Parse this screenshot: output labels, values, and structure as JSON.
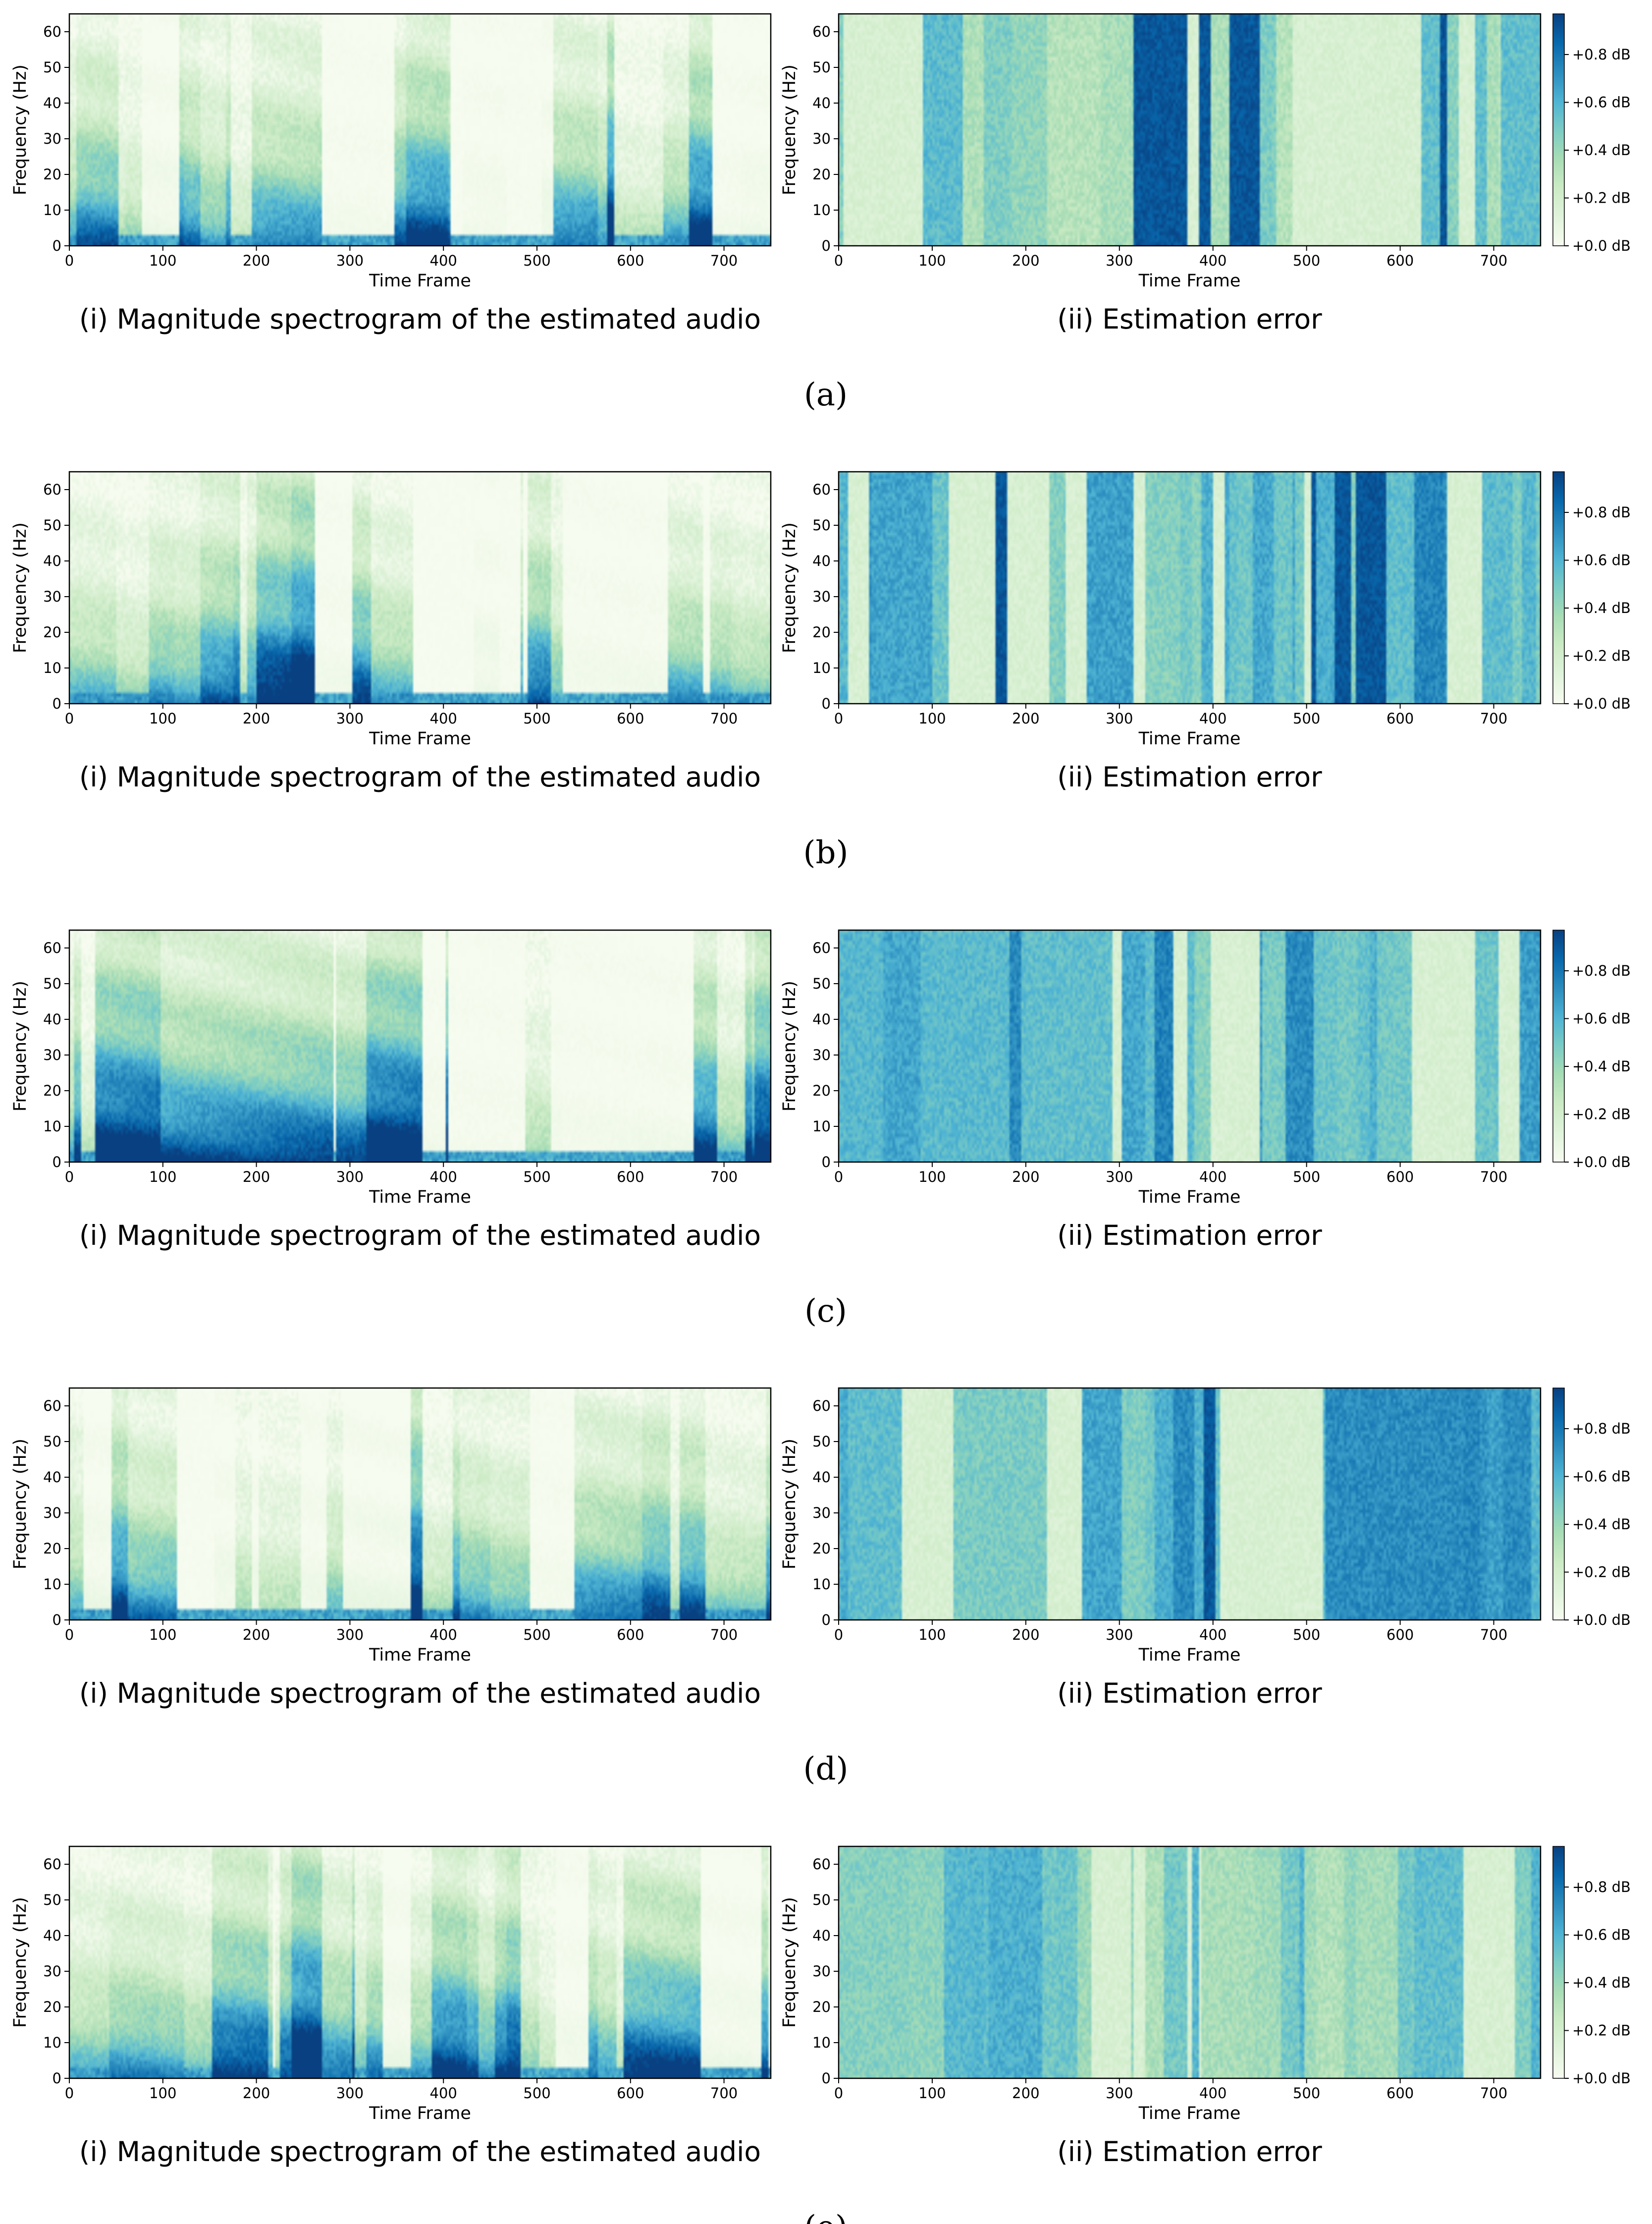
{
  "chart_data": [
    {
      "panel": "(a)",
      "plots": [
        {
          "type": "heatmap",
          "kind": "spectrogram",
          "title": "(i) Magnitude spectrogram of the estimated audio",
          "xlabel": "Time Frame",
          "ylabel": "Frequency (Hz)",
          "xlim": [
            0,
            750
          ],
          "ylim": [
            0,
            65
          ],
          "xticks": [
            0,
            100,
            200,
            300,
            400,
            500,
            600,
            700
          ],
          "yticks": [
            0,
            10,
            20,
            30,
            40,
            50,
            60
          ],
          "colormap": "GnBu",
          "seed": 11
        },
        {
          "type": "heatmap",
          "kind": "error",
          "title": "(ii) Estimation error",
          "xlabel": "Time Frame",
          "ylabel": "Frequency (Hz)",
          "xlim": [
            0,
            750
          ],
          "ylim": [
            0,
            65
          ],
          "xticks": [
            0,
            100,
            200,
            300,
            400,
            500,
            600,
            700
          ],
          "yticks": [
            0,
            10,
            20,
            30,
            40,
            50,
            60
          ],
          "colormap": "GnBu",
          "colorbar": {
            "range": [
              0.0,
              0.97
            ],
            "ticks": [
              "+0.0 dB",
              "+0.2 dB",
              "+0.4 dB",
              "+0.6 dB",
              "+0.8 dB"
            ],
            "tick_values": [
              0.0,
              0.2,
              0.4,
              0.6,
              0.8
            ]
          },
          "level": 0.45,
          "seed": 12
        }
      ]
    },
    {
      "panel": "(b)",
      "plots": [
        {
          "type": "heatmap",
          "kind": "spectrogram",
          "title": "(i) Magnitude spectrogram of the estimated audio",
          "xlabel": "Time Frame",
          "ylabel": "Frequency (Hz)",
          "xlim": [
            0,
            750
          ],
          "ylim": [
            0,
            65
          ],
          "xticks": [
            0,
            100,
            200,
            300,
            400,
            500,
            600,
            700
          ],
          "yticks": [
            0,
            10,
            20,
            30,
            40,
            50,
            60
          ],
          "colormap": "GnBu",
          "seed": 21
        },
        {
          "type": "heatmap",
          "kind": "error",
          "title": "(ii) Estimation error",
          "xlabel": "Time Frame",
          "ylabel": "Frequency (Hz)",
          "xlim": [
            0,
            750
          ],
          "ylim": [
            0,
            65
          ],
          "xticks": [
            0,
            100,
            200,
            300,
            400,
            500,
            600,
            700
          ],
          "yticks": [
            0,
            10,
            20,
            30,
            40,
            50,
            60
          ],
          "colormap": "GnBu",
          "colorbar": {
            "range": [
              0.0,
              0.97
            ],
            "ticks": [
              "+0.0 dB",
              "+0.2 dB",
              "+0.4 dB",
              "+0.6 dB",
              "+0.8 dB"
            ],
            "tick_values": [
              0.0,
              0.2,
              0.4,
              0.6,
              0.8
            ]
          },
          "level": 0.58,
          "seed": 22
        }
      ]
    },
    {
      "panel": "(c)",
      "plots": [
        {
          "type": "heatmap",
          "kind": "spectrogram",
          "title": "(i) Magnitude spectrogram of the estimated audio",
          "xlabel": "Time Frame",
          "ylabel": "Frequency (Hz)",
          "xlim": [
            0,
            750
          ],
          "ylim": [
            0,
            65
          ],
          "xticks": [
            0,
            100,
            200,
            300,
            400,
            500,
            600,
            700
          ],
          "yticks": [
            0,
            10,
            20,
            30,
            40,
            50,
            60
          ],
          "colormap": "GnBu",
          "seed": 31
        },
        {
          "type": "heatmap",
          "kind": "error",
          "title": "(ii) Estimation error",
          "xlabel": "Time Frame",
          "ylabel": "Frequency (Hz)",
          "xlim": [
            0,
            750
          ],
          "ylim": [
            0,
            65
          ],
          "xticks": [
            0,
            100,
            200,
            300,
            400,
            500,
            600,
            700
          ],
          "yticks": [
            0,
            10,
            20,
            30,
            40,
            50,
            60
          ],
          "colormap": "GnBu",
          "colorbar": {
            "range": [
              0.0,
              0.97
            ],
            "ticks": [
              "+0.0 dB",
              "+0.2 dB",
              "+0.4 dB",
              "+0.6 dB",
              "+0.8 dB"
            ],
            "tick_values": [
              0.0,
              0.2,
              0.4,
              0.6,
              0.8
            ]
          },
          "level": 0.58,
          "seed": 32
        }
      ]
    },
    {
      "panel": "(d)",
      "plots": [
        {
          "type": "heatmap",
          "kind": "spectrogram",
          "title": "(i) Magnitude spectrogram of the estimated audio",
          "xlabel": "Time Frame",
          "ylabel": "Frequency (Hz)",
          "xlim": [
            0,
            750
          ],
          "ylim": [
            0,
            65
          ],
          "xticks": [
            0,
            100,
            200,
            300,
            400,
            500,
            600,
            700
          ],
          "yticks": [
            0,
            10,
            20,
            30,
            40,
            50,
            60
          ],
          "colormap": "GnBu",
          "seed": 41
        },
        {
          "type": "heatmap",
          "kind": "error",
          "title": "(ii) Estimation error",
          "xlabel": "Time Frame",
          "ylabel": "Frequency (Hz)",
          "xlim": [
            0,
            750
          ],
          "ylim": [
            0,
            65
          ],
          "xticks": [
            0,
            100,
            200,
            300,
            400,
            500,
            600,
            700
          ],
          "yticks": [
            0,
            10,
            20,
            30,
            40,
            50,
            60
          ],
          "colormap": "GnBu",
          "colorbar": {
            "range": [
              0.0,
              0.97
            ],
            "ticks": [
              "+0.0 dB",
              "+0.2 dB",
              "+0.4 dB",
              "+0.6 dB",
              "+0.8 dB"
            ],
            "tick_values": [
              0.0,
              0.2,
              0.4,
              0.6,
              0.8
            ]
          },
          "level": 0.58,
          "seed": 42
        }
      ]
    },
    {
      "panel": "(e)",
      "plots": [
        {
          "type": "heatmap",
          "kind": "spectrogram",
          "title": "(i) Magnitude spectrogram of the estimated audio",
          "xlabel": "Time Frame",
          "ylabel": "Frequency (Hz)",
          "xlim": [
            0,
            750
          ],
          "ylim": [
            0,
            65
          ],
          "xticks": [
            0,
            100,
            200,
            300,
            400,
            500,
            600,
            700
          ],
          "yticks": [
            0,
            10,
            20,
            30,
            40,
            50,
            60
          ],
          "colormap": "GnBu",
          "seed": 51
        },
        {
          "type": "heatmap",
          "kind": "error",
          "title": "(ii) Estimation error",
          "xlabel": "Time Frame",
          "ylabel": "Frequency (Hz)",
          "xlim": [
            0,
            750
          ],
          "ylim": [
            0,
            65
          ],
          "xticks": [
            0,
            100,
            200,
            300,
            400,
            500,
            600,
            700
          ],
          "yticks": [
            0,
            10,
            20,
            30,
            40,
            50,
            60
          ],
          "colormap": "GnBu",
          "colorbar": {
            "range": [
              0.0,
              0.97
            ],
            "ticks": [
              "+0.0 dB",
              "+0.2 dB",
              "+0.4 dB",
              "+0.6 dB",
              "+0.8 dB"
            ],
            "tick_values": [
              0.0,
              0.2,
              0.4,
              0.6,
              0.8
            ]
          },
          "level": 0.45,
          "seed": 52
        }
      ]
    }
  ],
  "colors": {
    "gnbu": [
      "#f7fcf0",
      "#e0f3db",
      "#ccebc5",
      "#a8ddb5",
      "#7bccc4",
      "#4eb3d3",
      "#2b8cbe",
      "#0868ac",
      "#084081"
    ]
  }
}
